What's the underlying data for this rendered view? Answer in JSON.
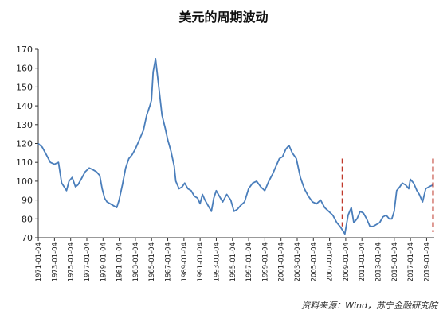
{
  "chart_data": {
    "type": "line",
    "title": "美元的周期波动",
    "source": "资料来源：Wind，苏宁金融研究院",
    "xlabel": "",
    "ylabel": "",
    "ylim": [
      70,
      170
    ],
    "y_ticks": [
      70,
      80,
      90,
      100,
      110,
      120,
      130,
      140,
      150,
      160,
      170
    ],
    "x_range": [
      "1971-01-04",
      "2019-12-31"
    ],
    "x_tick_labels": [
      "1971-01-04",
      "1973-01-04",
      "1975-01-04",
      "1977-01-04",
      "1979-01-04",
      "1981-01-04",
      "1983-01-04",
      "1985-01-04",
      "1987-01-04",
      "1989-01-04",
      "1991-01-04",
      "1993-01-04",
      "1995-01-04",
      "1997-01-04",
      "1999-01-04",
      "2001-01-04",
      "2003-01-04",
      "2005-01-04",
      "2007-01-04",
      "2009-01-04",
      "2011-01-04",
      "2013-01-04",
      "2015-01-04",
      "2017-01-04",
      "2019-01-04"
    ],
    "grid": false,
    "legend": "none",
    "series": [
      {
        "color": "#4a7ebb",
        "x": [
          1971.0,
          1971.5,
          1972.0,
          1972.5,
          1973.0,
          1973.5,
          1973.9,
          1974.2,
          1974.5,
          1974.8,
          1975.2,
          1975.6,
          1975.9,
          1976.3,
          1976.8,
          1977.3,
          1977.8,
          1978.2,
          1978.6,
          1978.9,
          1979.2,
          1979.5,
          1979.9,
          1980.3,
          1980.7,
          1981.0,
          1981.4,
          1981.8,
          1982.2,
          1982.6,
          1983.0,
          1983.5,
          1984.0,
          1984.4,
          1984.8,
          1985.0,
          1985.2,
          1985.5,
          1985.9,
          1986.3,
          1986.7,
          1987.0,
          1987.4,
          1987.8,
          1988.0,
          1988.4,
          1988.8,
          1989.1,
          1989.5,
          1989.9,
          1990.3,
          1990.7,
          1991.0,
          1991.3,
          1991.6,
          1992.0,
          1992.4,
          1992.7,
          1993.0,
          1993.4,
          1993.8,
          1994.3,
          1994.8,
          1995.2,
          1995.6,
          1996.0,
          1996.5,
          1997.0,
          1997.5,
          1998.0,
          1998.5,
          1999.0,
          1999.5,
          2000.0,
          2000.4,
          2000.8,
          2001.2,
          2001.6,
          2002.0,
          2002.4,
          2002.9,
          2003.4,
          2003.9,
          2004.4,
          2004.9,
          2005.4,
          2005.9,
          2006.4,
          2006.9,
          2007.4,
          2007.9,
          2008.3,
          2008.6,
          2008.9,
          2009.3,
          2009.7,
          2010.0,
          2010.4,
          2010.8,
          2011.2,
          2011.6,
          2012.0,
          2012.4,
          2012.8,
          2013.2,
          2013.6,
          2014.0,
          2014.4,
          2014.7,
          2015.0,
          2015.3,
          2015.7,
          2016.0,
          2016.4,
          2016.8,
          2017.0,
          2017.4,
          2017.8,
          2018.1,
          2018.5,
          2018.9,
          2019.3,
          2019.8
        ],
        "y": [
          120,
          118,
          114,
          110,
          109,
          110,
          99,
          97,
          95,
          100,
          102,
          97,
          98,
          101,
          105,
          107,
          106,
          105,
          103,
          96,
          91,
          89,
          88,
          87,
          86,
          90,
          98,
          107,
          112,
          114,
          117,
          122,
          127,
          135,
          140,
          143,
          158,
          165,
          150,
          135,
          128,
          122,
          116,
          108,
          100,
          96,
          97,
          99,
          96,
          95,
          92,
          91,
          88,
          93,
          90,
          87,
          84,
          91,
          95,
          92,
          89,
          93,
          90,
          84,
          85,
          87,
          89,
          96,
          99,
          100,
          97,
          95,
          100,
          104,
          108,
          112,
          113,
          117,
          119,
          115,
          112,
          102,
          96,
          92,
          89,
          88,
          90,
          86,
          84,
          82,
          78,
          76,
          74,
          72,
          82,
          86,
          78,
          80,
          84,
          83,
          80,
          76,
          76,
          77,
          78,
          81,
          82,
          80,
          80,
          84,
          95,
          97,
          99,
          98,
          96,
          101,
          99,
          95,
          93,
          89,
          96,
          97,
          98
        ]
      }
    ],
    "annotations": [
      {
        "type": "vertical-dashed-line",
        "x": 2008.6,
        "y_range": [
          76,
          112
        ],
        "color": "#c0392b"
      },
      {
        "type": "vertical-dashed-line",
        "x": 2019.8,
        "y_range": [
          73,
          112
        ],
        "color": "#c0392b"
      }
    ]
  }
}
